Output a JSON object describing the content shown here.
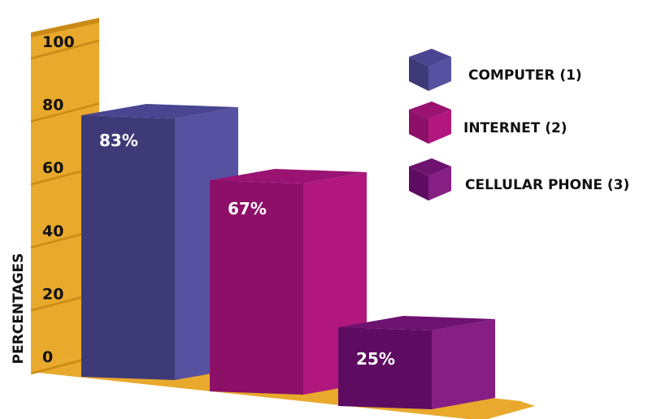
{
  "chart_data": {
    "type": "bar",
    "title": "",
    "xlabel": "",
    "ylabel": "PERCENTAGES",
    "ylim": [
      0,
      100
    ],
    "y_ticks": [
      0,
      20,
      40,
      60,
      80,
      100
    ],
    "categories": [
      "COMPUTER (1)",
      "INTERNET (2)",
      "CELLULAR PHONE (3)"
    ],
    "values": [
      83,
      67,
      25
    ],
    "data_labels": [
      "83%",
      "67%",
      "25%"
    ],
    "legend_position": "top-right",
    "grid": false,
    "style": "3d",
    "colors": {
      "axis_wall": "#E8A92C",
      "axis_wall_shade": "#C98A16",
      "bars": [
        {
          "front": "#3E3A78",
          "side": "#5651A0",
          "top": "#4A4590"
        },
        {
          "front": "#8C0F68",
          "side": "#B2177E",
          "top": "#9A1272"
        },
        {
          "front": "#5E0C62",
          "side": "#861E84",
          "top": "#6E1270"
        }
      ]
    }
  }
}
